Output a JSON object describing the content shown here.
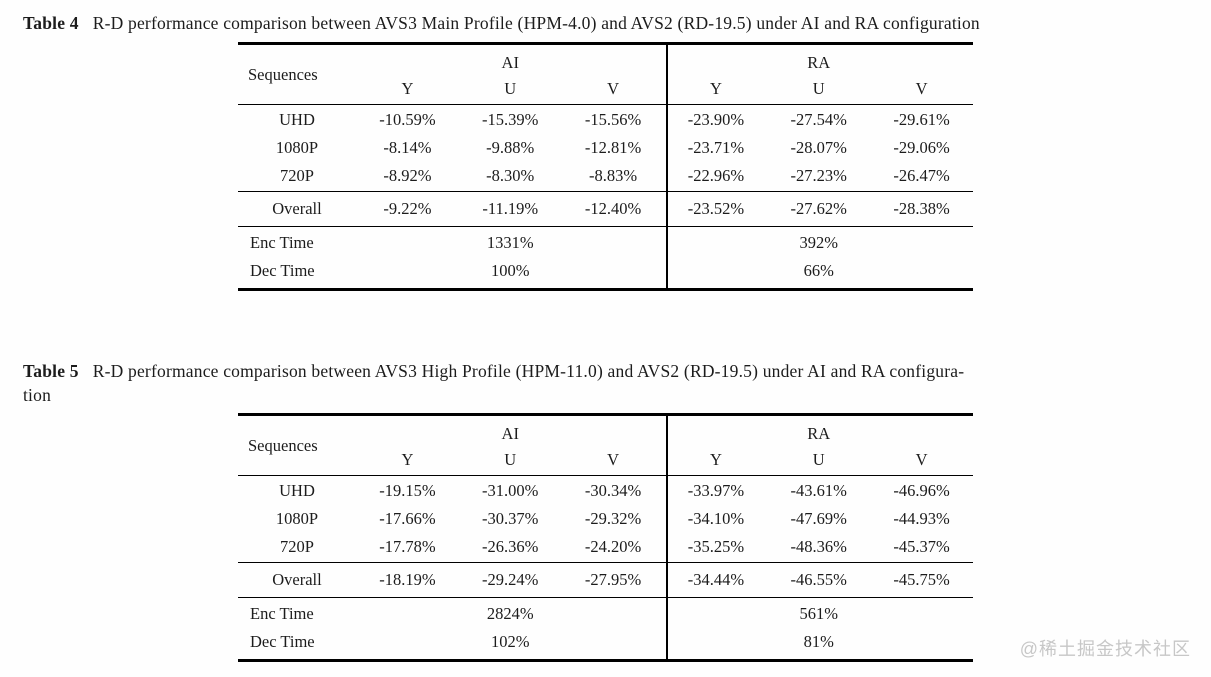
{
  "table4": {
    "label": "Table 4",
    "caption": "R-D performance comparison between AVS3 Main Profile (HPM-4.0) and AVS2 (RD-19.5) under AI and RA configuration",
    "header": {
      "sequences": "Sequences",
      "group_ai": "AI",
      "group_ra": "RA",
      "sub": [
        "Y",
        "U",
        "V",
        "Y",
        "U",
        "V"
      ]
    },
    "rows": [
      {
        "label": "UHD",
        "cells": [
          "-10.59%",
          "-15.39%",
          "-15.56%",
          "-23.90%",
          "-27.54%",
          "-29.61%"
        ]
      },
      {
        "label": "1080P",
        "cells": [
          "-8.14%",
          "-9.88%",
          "-12.81%",
          "-23.71%",
          "-28.07%",
          "-29.06%"
        ]
      },
      {
        "label": "720P",
        "cells": [
          "-8.92%",
          "-8.30%",
          "-8.83%",
          "-22.96%",
          "-27.23%",
          "-26.47%"
        ]
      }
    ],
    "overall": {
      "label": "Overall",
      "cells": [
        "-9.22%",
        "-11.19%",
        "-12.40%",
        "-23.52%",
        "-27.62%",
        "-28.38%"
      ]
    },
    "enc_time": {
      "label": "Enc Time",
      "ai": "1331%",
      "ra": "392%"
    },
    "dec_time": {
      "label": "Dec Time",
      "ai": "100%",
      "ra": "66%"
    }
  },
  "table5": {
    "label": "Table 5",
    "caption_line1": "R-D performance comparison between AVS3 High Profile (HPM-11.0) and AVS2 (RD-19.5) under AI and RA configura-",
    "caption_line2": "tion",
    "header": {
      "sequences": "Sequences",
      "group_ai": "AI",
      "group_ra": "RA",
      "sub": [
        "Y",
        "U",
        "V",
        "Y",
        "U",
        "V"
      ]
    },
    "rows": [
      {
        "label": "UHD",
        "cells": [
          "-19.15%",
          "-31.00%",
          "-30.34%",
          "-33.97%",
          "-43.61%",
          "-46.96%"
        ]
      },
      {
        "label": "1080P",
        "cells": [
          "-17.66%",
          "-30.37%",
          "-29.32%",
          "-34.10%",
          "-47.69%",
          "-44.93%"
        ]
      },
      {
        "label": "720P",
        "cells": [
          "-17.78%",
          "-26.36%",
          "-24.20%",
          "-35.25%",
          "-48.36%",
          "-45.37%"
        ]
      }
    ],
    "overall": {
      "label": "Overall",
      "cells": [
        "-18.19%",
        "-29.24%",
        "-27.95%",
        "-34.44%",
        "-46.55%",
        "-45.75%"
      ]
    },
    "enc_time": {
      "label": "Enc Time",
      "ai": "2824%",
      "ra": "561%"
    },
    "dec_time": {
      "label": "Dec Time",
      "ai": "102%",
      "ra": "81%"
    }
  },
  "watermark": {
    "text": "@稀土掘金技术社区",
    "color": "#c7c7c7"
  }
}
